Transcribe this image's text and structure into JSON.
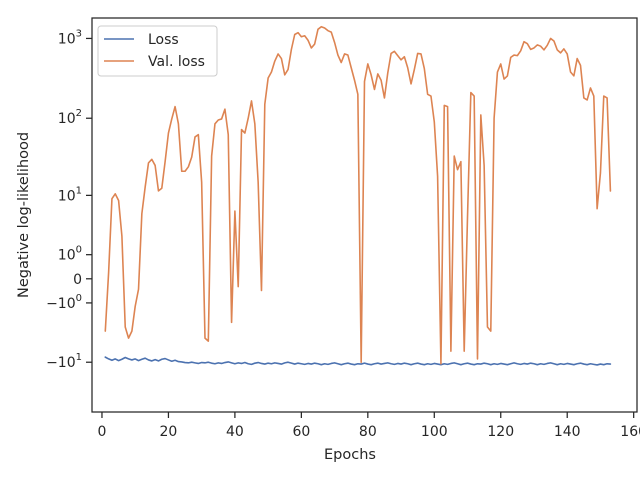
{
  "chart_data": {
    "type": "line",
    "title": "",
    "xlabel": "Epochs",
    "ylabel": "Negative log-likelihood",
    "y_scale": "symlog",
    "xlim": [
      -3,
      161
    ],
    "ylim": [
      -45,
      1800
    ],
    "grid": false,
    "legend_position": "top-left",
    "x_ticks": [
      0,
      20,
      40,
      60,
      80,
      100,
      120,
      140,
      160
    ],
    "x_tick_labels": [
      "0",
      "20",
      "40",
      "60",
      "80",
      "100",
      "120",
      "140",
      "160"
    ],
    "y_ticks": [
      -10,
      -1,
      0,
      1,
      10,
      100,
      1000
    ],
    "y_tick_labels": [
      {
        "base": "−10",
        "exp": "1"
      },
      {
        "base": "−10",
        "exp": "0"
      },
      {
        "base": "0",
        "exp": ""
      },
      {
        "base": "10",
        "exp": "0"
      },
      {
        "base": "10",
        "exp": "1"
      },
      {
        "base": "10",
        "exp": "2"
      },
      {
        "base": "10",
        "exp": "3"
      }
    ],
    "series": [
      {
        "name": "Loss",
        "color": "#4c72b0",
        "points": [
          [
            1,
            -8.5
          ],
          [
            2,
            -9
          ],
          [
            3,
            -9.4
          ],
          [
            4,
            -9
          ],
          [
            5,
            -9.5
          ],
          [
            6,
            -9.1
          ],
          [
            7,
            -8.6
          ],
          [
            8,
            -9
          ],
          [
            9,
            -9.3
          ],
          [
            10,
            -9
          ],
          [
            11,
            -9.5
          ],
          [
            12,
            -9.1
          ],
          [
            13,
            -8.8
          ],
          [
            14,
            -9.3
          ],
          [
            15,
            -9.6
          ],
          [
            16,
            -9.2
          ],
          [
            17,
            -9.6
          ],
          [
            18,
            -9.1
          ],
          [
            19,
            -8.9
          ],
          [
            20,
            -9.3
          ],
          [
            21,
            -9.7
          ],
          [
            22,
            -9.4
          ],
          [
            23,
            -9.8
          ],
          [
            24,
            -9.9
          ],
          [
            25,
            -10.1
          ],
          [
            26,
            -10.2
          ],
          [
            27,
            -10
          ],
          [
            28,
            -10.2
          ],
          [
            29,
            -10.4
          ],
          [
            30,
            -10.1
          ],
          [
            31,
            -10.2
          ],
          [
            32,
            -10
          ],
          [
            33,
            -10.3
          ],
          [
            34,
            -10.5
          ],
          [
            35,
            -10.2
          ],
          [
            36,
            -10.4
          ],
          [
            37,
            -10.1
          ],
          [
            38,
            -9.9
          ],
          [
            39,
            -10.2
          ],
          [
            40,
            -10.5
          ],
          [
            41,
            -10.2
          ],
          [
            42,
            -10.4
          ],
          [
            43,
            -10.1
          ],
          [
            44,
            -10.5
          ],
          [
            45,
            -10.7
          ],
          [
            46,
            -10.3
          ],
          [
            47,
            -10.1
          ],
          [
            48,
            -10.4
          ],
          [
            49,
            -10.6
          ],
          [
            50,
            -10.3
          ],
          [
            51,
            -10.5
          ],
          [
            52,
            -10.2
          ],
          [
            53,
            -10.4
          ],
          [
            54,
            -10.6
          ],
          [
            55,
            -10.2
          ],
          [
            56,
            -10
          ],
          [
            57,
            -10.3
          ],
          [
            58,
            -10.6
          ],
          [
            59,
            -10.3
          ],
          [
            60,
            -10.5
          ],
          [
            61,
            -10.7
          ],
          [
            62,
            -10.4
          ],
          [
            63,
            -10.6
          ],
          [
            64,
            -10.3
          ],
          [
            65,
            -10.5
          ],
          [
            66,
            -10.8
          ],
          [
            67,
            -10.5
          ],
          [
            68,
            -10.7
          ],
          [
            69,
            -10.4
          ],
          [
            70,
            -10.2
          ],
          [
            71,
            -10.5
          ],
          [
            72,
            -10.8
          ],
          [
            73,
            -10.5
          ],
          [
            74,
            -10.3
          ],
          [
            75,
            -10.6
          ],
          [
            76,
            -10.8
          ],
          [
            77,
            -10.5
          ],
          [
            78,
            -10.6
          ],
          [
            79,
            -10.3
          ],
          [
            80,
            -10.6
          ],
          [
            81,
            -10.8
          ],
          [
            82,
            -10.5
          ],
          [
            83,
            -10.3
          ],
          [
            84,
            -10.6
          ],
          [
            85,
            -10.4
          ],
          [
            86,
            -10.2
          ],
          [
            87,
            -10.5
          ],
          [
            88,
            -10.7
          ],
          [
            89,
            -10.4
          ],
          [
            90,
            -10.6
          ],
          [
            91,
            -10.3
          ],
          [
            92,
            -10.5
          ],
          [
            93,
            -10.8
          ],
          [
            94,
            -10.5
          ],
          [
            95,
            -10.3
          ],
          [
            96,
            -10.6
          ],
          [
            97,
            -10.8
          ],
          [
            98,
            -10.5
          ],
          [
            99,
            -10.7
          ],
          [
            100,
            -10.4
          ],
          [
            101,
            -10.6
          ],
          [
            102,
            -10.8
          ],
          [
            103,
            -10.5
          ],
          [
            104,
            -10.7
          ],
          [
            105,
            -10.4
          ],
          [
            106,
            -10.2
          ],
          [
            107,
            -10.5
          ],
          [
            108,
            -10.8
          ],
          [
            109,
            -10.5
          ],
          [
            110,
            -10.3
          ],
          [
            111,
            -10.6
          ],
          [
            112,
            -10.8
          ],
          [
            113,
            -10.5
          ],
          [
            114,
            -10.6
          ],
          [
            115,
            -10.3
          ],
          [
            116,
            -10.5
          ],
          [
            117,
            -10.8
          ],
          [
            118,
            -10.5
          ],
          [
            119,
            -10.7
          ],
          [
            120,
            -10.4
          ],
          [
            121,
            -10.6
          ],
          [
            122,
            -10.8
          ],
          [
            123,
            -10.5
          ],
          [
            124,
            -10.2
          ],
          [
            125,
            -10.5
          ],
          [
            126,
            -10.7
          ],
          [
            127,
            -10.4
          ],
          [
            128,
            -10.6
          ],
          [
            129,
            -10.3
          ],
          [
            130,
            -10.5
          ],
          [
            131,
            -10.8
          ],
          [
            132,
            -10.5
          ],
          [
            133,
            -10.7
          ],
          [
            134,
            -10.4
          ],
          [
            135,
            -10.2
          ],
          [
            136,
            -10.5
          ],
          [
            137,
            -10.8
          ],
          [
            138,
            -10.5
          ],
          [
            139,
            -10.7
          ],
          [
            140,
            -10.4
          ],
          [
            141,
            -10.6
          ],
          [
            142,
            -10.8
          ],
          [
            143,
            -10.5
          ],
          [
            144,
            -10.3
          ],
          [
            145,
            -10.6
          ],
          [
            146,
            -10.8
          ],
          [
            147,
            -10.5
          ],
          [
            148,
            -10.7
          ],
          [
            149,
            -10.9
          ],
          [
            150,
            -10.6
          ],
          [
            151,
            -10.8
          ],
          [
            152,
            -10.5
          ],
          [
            153,
            -10.6
          ]
        ]
      },
      {
        "name": "Val. loss",
        "color": "#dd8452",
        "points": [
          [
            1,
            -3.5
          ],
          [
            2,
            0.2
          ],
          [
            3,
            9
          ],
          [
            4,
            10.5
          ],
          [
            5,
            8.5
          ],
          [
            6,
            2.4
          ],
          [
            7,
            -3
          ],
          [
            8,
            -4.5
          ],
          [
            9,
            -3.5
          ],
          [
            10,
            -1.2
          ],
          [
            11,
            -0.35
          ],
          [
            12,
            5.5
          ],
          [
            13,
            13
          ],
          [
            14,
            27
          ],
          [
            15,
            30
          ],
          [
            16,
            25
          ],
          [
            17,
            11.5
          ],
          [
            18,
            12.5
          ],
          [
            19,
            28
          ],
          [
            20,
            65
          ],
          [
            21,
            98
          ],
          [
            22,
            140
          ],
          [
            23,
            85
          ],
          [
            24,
            21
          ],
          [
            25,
            21
          ],
          [
            26,
            24
          ],
          [
            27,
            32
          ],
          [
            28,
            58
          ],
          [
            29,
            62
          ],
          [
            30,
            15
          ],
          [
            31,
            -4.5
          ],
          [
            32,
            -5
          ],
          [
            33,
            33
          ],
          [
            34,
            85
          ],
          [
            35,
            95
          ],
          [
            36,
            98
          ],
          [
            37,
            130
          ],
          [
            38,
            62
          ],
          [
            39,
            -2.5
          ],
          [
            40,
            6
          ],
          [
            41,
            -0.25
          ],
          [
            42,
            72
          ],
          [
            43,
            65
          ],
          [
            44,
            100
          ],
          [
            45,
            165
          ],
          [
            46,
            85
          ],
          [
            47,
            15
          ],
          [
            48,
            -0.4
          ],
          [
            49,
            150
          ],
          [
            50,
            320
          ],
          [
            51,
            380
          ],
          [
            52,
            520
          ],
          [
            53,
            640
          ],
          [
            54,
            560
          ],
          [
            55,
            350
          ],
          [
            56,
            410
          ],
          [
            57,
            730
          ],
          [
            58,
            1120
          ],
          [
            59,
            1180
          ],
          [
            60,
            1050
          ],
          [
            61,
            1080
          ],
          [
            62,
            950
          ],
          [
            63,
            760
          ],
          [
            64,
            850
          ],
          [
            65,
            1300
          ],
          [
            66,
            1400
          ],
          [
            67,
            1350
          ],
          [
            68,
            1250
          ],
          [
            69,
            1200
          ],
          [
            70,
            890
          ],
          [
            71,
            620
          ],
          [
            72,
            500
          ],
          [
            73,
            640
          ],
          [
            74,
            620
          ],
          [
            75,
            430
          ],
          [
            76,
            300
          ],
          [
            77,
            200
          ],
          [
            78,
            -10
          ],
          [
            79,
            290
          ],
          [
            80,
            480
          ],
          [
            81,
            350
          ],
          [
            82,
            230
          ],
          [
            83,
            360
          ],
          [
            84,
            300
          ],
          [
            85,
            180
          ],
          [
            86,
            370
          ],
          [
            87,
            650
          ],
          [
            88,
            690
          ],
          [
            89,
            610
          ],
          [
            90,
            540
          ],
          [
            91,
            590
          ],
          [
            92,
            430
          ],
          [
            93,
            270
          ],
          [
            94,
            410
          ],
          [
            95,
            650
          ],
          [
            96,
            640
          ],
          [
            97,
            420
          ],
          [
            98,
            200
          ],
          [
            99,
            190
          ],
          [
            100,
            90
          ],
          [
            101,
            18
          ],
          [
            102,
            -10.5
          ],
          [
            103,
            145
          ],
          [
            104,
            140
          ],
          [
            105,
            -7
          ],
          [
            106,
            33
          ],
          [
            107,
            22
          ],
          [
            108,
            28
          ],
          [
            109,
            -7
          ],
          [
            110,
            5
          ],
          [
            111,
            210
          ],
          [
            112,
            190
          ],
          [
            113,
            -9
          ],
          [
            114,
            110
          ],
          [
            115,
            25
          ],
          [
            116,
            -3
          ],
          [
            117,
            -3.5
          ],
          [
            118,
            100
          ],
          [
            119,
            380
          ],
          [
            120,
            480
          ],
          [
            121,
            310
          ],
          [
            122,
            340
          ],
          [
            123,
            580
          ],
          [
            124,
            620
          ],
          [
            125,
            610
          ],
          [
            126,
            700
          ],
          [
            127,
            910
          ],
          [
            128,
            860
          ],
          [
            129,
            730
          ],
          [
            130,
            760
          ],
          [
            131,
            830
          ],
          [
            132,
            800
          ],
          [
            133,
            720
          ],
          [
            134,
            820
          ],
          [
            135,
            1000
          ],
          [
            136,
            930
          ],
          [
            137,
            720
          ],
          [
            138,
            660
          ],
          [
            139,
            740
          ],
          [
            140,
            640
          ],
          [
            141,
            380
          ],
          [
            142,
            340
          ],
          [
            143,
            560
          ],
          [
            144,
            460
          ],
          [
            145,
            180
          ],
          [
            146,
            170
          ],
          [
            147,
            240
          ],
          [
            148,
            190
          ],
          [
            149,
            6.5
          ],
          [
            150,
            20
          ],
          [
            151,
            190
          ],
          [
            152,
            180
          ],
          [
            153,
            11.5
          ]
        ]
      }
    ]
  }
}
